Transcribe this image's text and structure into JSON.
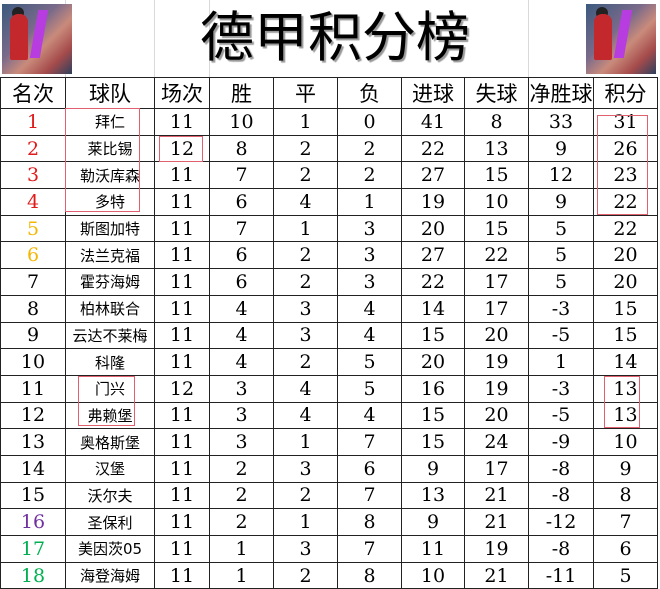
{
  "title": "德甲积分榜",
  "colors": {
    "top4": "#e01b1b",
    "europa": "#f2b705",
    "playoff": "#7030a0",
    "relegation": "#00b050",
    "highlight_box": "#e06070"
  },
  "headers": [
    "名次",
    "球队",
    "场次",
    "胜",
    "平",
    "负",
    "进球",
    "失球",
    "净胜球",
    "积分"
  ],
  "rows": [
    [
      "1",
      "拜仁",
      "11",
      "10",
      "1",
      "0",
      "41",
      "8",
      "33",
      "31"
    ],
    [
      "2",
      "莱比锡",
      "12",
      "8",
      "2",
      "2",
      "22",
      "13",
      "9",
      "26"
    ],
    [
      "3",
      "勒沃库森",
      "11",
      "7",
      "2",
      "2",
      "27",
      "15",
      "12",
      "23"
    ],
    [
      "4",
      "多特",
      "11",
      "6",
      "4",
      "1",
      "19",
      "10",
      "9",
      "22"
    ],
    [
      "5",
      "斯图加特",
      "11",
      "7",
      "1",
      "3",
      "20",
      "15",
      "5",
      "22"
    ],
    [
      "6",
      "法兰克福",
      "11",
      "6",
      "2",
      "3",
      "27",
      "22",
      "5",
      "20"
    ],
    [
      "7",
      "霍芬海姆",
      "11",
      "6",
      "2",
      "3",
      "22",
      "17",
      "5",
      "20"
    ],
    [
      "8",
      "柏林联合",
      "11",
      "4",
      "3",
      "4",
      "14",
      "17",
      "-3",
      "15"
    ],
    [
      "9",
      "云达不莱梅",
      "11",
      "4",
      "3",
      "4",
      "15",
      "20",
      "-5",
      "15"
    ],
    [
      "10",
      "科隆",
      "11",
      "4",
      "2",
      "5",
      "20",
      "19",
      "1",
      "14"
    ],
    [
      "11",
      "门兴",
      "12",
      "3",
      "4",
      "5",
      "16",
      "19",
      "-3",
      "13"
    ],
    [
      "12",
      "弗赖堡",
      "11",
      "3",
      "4",
      "4",
      "15",
      "20",
      "-5",
      "13"
    ],
    [
      "13",
      "奥格斯堡",
      "11",
      "3",
      "1",
      "7",
      "15",
      "24",
      "-9",
      "10"
    ],
    [
      "14",
      "汉堡",
      "11",
      "2",
      "3",
      "6",
      "9",
      "17",
      "-8",
      "9"
    ],
    [
      "15",
      "沃尔夫",
      "11",
      "2",
      "2",
      "7",
      "13",
      "21",
      "-8",
      "8"
    ],
    [
      "16",
      "圣保利",
      "11",
      "2",
      "1",
      "8",
      "9",
      "21",
      "-12",
      "7"
    ],
    [
      "17",
      "美因茨05",
      "11",
      "1",
      "3",
      "7",
      "11",
      "19",
      "-8",
      "6"
    ],
    [
      "18",
      "海登海姆",
      "11",
      "1",
      "2",
      "8",
      "10",
      "21",
      "-11",
      "5"
    ]
  ]
}
